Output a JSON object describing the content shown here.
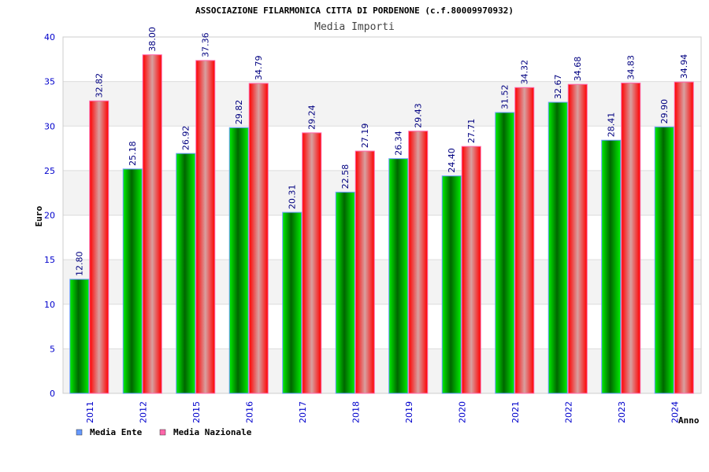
{
  "chart_data": {
    "type": "bar",
    "title": "ASSOCIAZIONE FILARMONICA CITTA DI PORDENONE (c.f.80009970932)",
    "subtitle": "Media Importi",
    "xlabel": "Anno",
    "ylabel": "Euro",
    "ylim": [
      0,
      40
    ],
    "yticks": [
      "0",
      "5",
      "10",
      "15",
      "20",
      "25",
      "30",
      "35",
      "40"
    ],
    "categories": [
      "2011",
      "2012",
      "2015",
      "2016",
      "2017",
      "2018",
      "2019",
      "2020",
      "2021",
      "2022",
      "2023",
      "2024"
    ],
    "series": [
      {
        "name": "Media Ente",
        "color": "#00cc00",
        "legend_color": "#6699ff",
        "values": [
          12.8,
          25.18,
          26.92,
          29.82,
          20.31,
          22.58,
          26.34,
          24.4,
          31.52,
          32.67,
          28.41,
          29.9
        ]
      },
      {
        "name": "Media Nazionale",
        "color": "#ff0000",
        "legend_color": "#ff66aa",
        "values": [
          32.82,
          38.0,
          37.36,
          34.79,
          29.24,
          27.19,
          29.43,
          27.71,
          34.32,
          34.68,
          34.83,
          34.94
        ]
      }
    ],
    "legend": "bottom-left",
    "grid": true
  }
}
